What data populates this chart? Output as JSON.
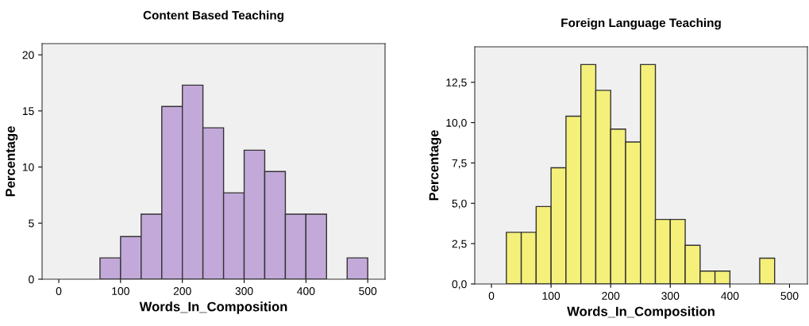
{
  "chart_data": [
    {
      "type": "histogram",
      "title": "Content Based Teaching",
      "xlabel": "Words_In_Composition",
      "ylabel": "Percentage",
      "color": "#c3a9d9",
      "bins": [
        66.7,
        100,
        133.3,
        166.7,
        200,
        233.3,
        266.7,
        300,
        333.3,
        366.7,
        400,
        433.3,
        466.7,
        500
      ],
      "values": [
        1.9,
        3.8,
        5.8,
        15.4,
        17.3,
        13.5,
        7.7,
        11.5,
        9.6,
        5.8,
        5.8,
        0,
        1.9
      ],
      "xlim": [
        -27,
        528
      ],
      "ylim": [
        0,
        21
      ],
      "xticks": [
        0,
        100,
        200,
        300,
        400,
        500
      ],
      "yticks": [
        0,
        5,
        10,
        15,
        20
      ],
      "grid": false
    },
    {
      "type": "histogram",
      "title": "Foreign Language Teaching",
      "xlabel": "Words_In_Composition",
      "ylabel": "Percentage",
      "color": "#f5f07a",
      "bins": [
        25,
        50,
        75,
        100,
        125,
        150,
        175,
        200,
        225,
        250,
        275,
        300,
        325,
        350,
        375,
        400,
        425,
        450,
        475
      ],
      "values": [
        3.2,
        3.2,
        4.8,
        7.2,
        10.4,
        13.6,
        12.0,
        9.6,
        8.8,
        13.6,
        4.0,
        4.0,
        2.4,
        0.8,
        0.8,
        0,
        0,
        1.6
      ],
      "xlim": [
        -28,
        530
      ],
      "ylim": [
        0,
        14.7
      ],
      "xticks": [
        0,
        100,
        200,
        300,
        400,
        500
      ],
      "yticks": [
        {
          "value": 0,
          "label": "0,0"
        },
        {
          "value": 2.5,
          "label": "2,5"
        },
        {
          "value": 5,
          "label": "5,0"
        },
        {
          "value": 7.5,
          "label": "7,5"
        },
        {
          "value": 10,
          "label": "10,0"
        },
        {
          "value": 12.5,
          "label": "12,5"
        }
      ],
      "grid": false
    }
  ]
}
